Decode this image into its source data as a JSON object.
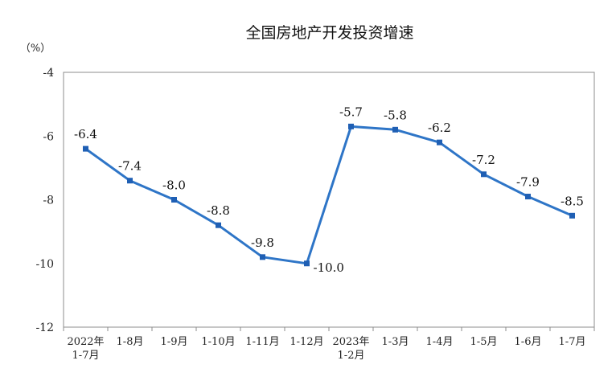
{
  "chart_data": {
    "type": "line",
    "title": "全国房地产开发投资增速",
    "ylabel": "（%）",
    "xlabel": "",
    "ylim": [
      -12,
      -4
    ],
    "yticks": [
      -4,
      -6,
      -8,
      -10,
      -12
    ],
    "grid": false,
    "legend": "none",
    "categories": [
      [
        "2022年",
        "1-7月"
      ],
      [
        "1-8月"
      ],
      [
        "1-9月"
      ],
      [
        "1-10月"
      ],
      [
        "1-11月"
      ],
      [
        "1-12月"
      ],
      [
        "2023年",
        "1-2月"
      ],
      [
        "1-3月"
      ],
      [
        "1-4月"
      ],
      [
        "1-5月"
      ],
      [
        "1-6月"
      ],
      [
        "1-7月"
      ]
    ],
    "series": [
      {
        "values": [
          -6.4,
          -7.4,
          -8.0,
          -8.8,
          -9.8,
          -10.0,
          -5.7,
          -5.8,
          -6.2,
          -7.2,
          -7.9,
          -8.5
        ],
        "labels": [
          "-6.4",
          "-7.4",
          "-8.0",
          "-8.8",
          "-9.8",
          "-10.0",
          "-5.7",
          "-5.8",
          "-6.2",
          "-7.2",
          "-7.9",
          "-8.5"
        ]
      }
    ],
    "colors": {
      "line": "#2e75c7",
      "marker": "#1f5fb4",
      "axis": "#8c8c8c"
    }
  }
}
